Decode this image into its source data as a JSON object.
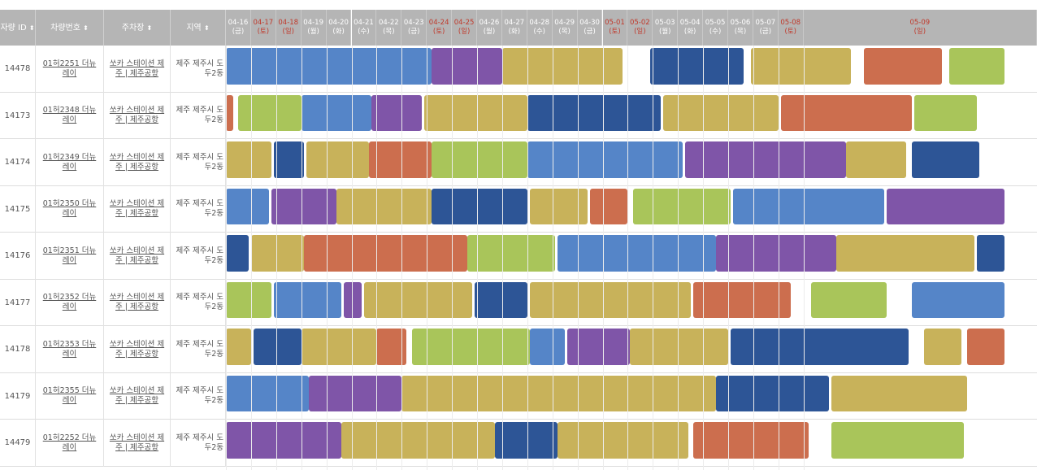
{
  "columns": {
    "car_id": "자량 ID",
    "car_no": "차량번호",
    "parking": "주차장",
    "region": "지역",
    "sort_mark": "⬍"
  },
  "dates": [
    {
      "d": "04-16",
      "w": "(금)",
      "weekend": false
    },
    {
      "d": "04-17",
      "w": "(토)",
      "weekend": true
    },
    {
      "d": "04-18",
      "w": "(일)",
      "weekend": true
    },
    {
      "d": "04-19",
      "w": "(월)",
      "weekend": false
    },
    {
      "d": "04-20",
      "w": "(화)",
      "weekend": false
    },
    {
      "d": "04-21",
      "w": "(수)",
      "weekend": false
    },
    {
      "d": "04-22",
      "w": "(목)",
      "weekend": false
    },
    {
      "d": "04-23",
      "w": "(금)",
      "weekend": false
    },
    {
      "d": "04-24",
      "w": "(토)",
      "weekend": true
    },
    {
      "d": "04-25",
      "w": "(일)",
      "weekend": true
    },
    {
      "d": "04-26",
      "w": "(월)",
      "weekend": false
    },
    {
      "d": "04-27",
      "w": "(화)",
      "weekend": false
    },
    {
      "d": "04-28",
      "w": "(수)",
      "weekend": false
    },
    {
      "d": "04-29",
      "w": "(목)",
      "weekend": false
    },
    {
      "d": "04-30",
      "w": "(금)",
      "weekend": false
    },
    {
      "d": "05-01",
      "w": "(토)",
      "weekend": true
    },
    {
      "d": "05-02",
      "w": "(일)",
      "weekend": true
    },
    {
      "d": "05-03",
      "w": "(월)",
      "weekend": false
    },
    {
      "d": "05-04",
      "w": "(화)",
      "weekend": false
    },
    {
      "d": "05-05",
      "w": "(수)",
      "weekend": false
    },
    {
      "d": "05-06",
      "w": "(목)",
      "weekend": false
    },
    {
      "d": "05-07",
      "w": "(금)",
      "weekend": false
    },
    {
      "d": "05-08",
      "w": "(토)",
      "weekend": true
    },
    {
      "d": "05-09",
      "w": "(일)",
      "weekend": true
    }
  ],
  "colors": {
    "blue": "#5585c8",
    "purple": "#7f55a8",
    "gold": "#c8b25a",
    "navy": "#2d5596",
    "orange": "#cc6e4e",
    "green": "#a9c55a"
  },
  "rows": [
    {
      "id": "14478",
      "car": "01허2251 더뉴레이",
      "parking": "쏘카 스테이션 제주 | 제주공항",
      "region": "제주 제주시 도두2동",
      "bars": [
        [
          "blue",
          0,
          8.2
        ],
        [
          "purple",
          8.2,
          11.0
        ],
        [
          "gold",
          11.0,
          15.8
        ],
        [
          "navy",
          16.9,
          20.6
        ],
        [
          "gold",
          20.9,
          24.9
        ],
        [
          "orange",
          25.4,
          28.5
        ],
        [
          "green",
          28.8,
          31
        ]
      ]
    },
    {
      "id": "14173",
      "car": "01허2348 더뉴레이",
      "parking": "쏘카 스테이션 제주 | 제주공항",
      "region": "제주 제주시 도두2동",
      "bars": [
        [
          "orange",
          0,
          0.3
        ],
        [
          "green",
          0.5,
          3.0
        ],
        [
          "blue",
          3.0,
          5.8
        ],
        [
          "purple",
          5.8,
          7.8
        ],
        [
          "gold",
          7.9,
          12.0
        ],
        [
          "navy",
          12.0,
          17.3
        ],
        [
          "gold",
          17.4,
          22.0
        ],
        [
          "orange",
          22.1,
          27.3
        ],
        [
          "green",
          27.4,
          29.9
        ]
      ]
    },
    {
      "id": "14174",
      "car": "01허2349 더뉴레이",
      "parking": "쏘카 스테이션 제주 | 제주공항",
      "region": "제주 제주시 도두2동",
      "bars": [
        [
          "gold",
          0,
          1.8
        ],
        [
          "navy",
          1.9,
          3.1
        ],
        [
          "gold",
          3.2,
          5.7
        ],
        [
          "orange",
          5.7,
          8.2
        ],
        [
          "green",
          8.2,
          12.0
        ],
        [
          "blue",
          12.0,
          18.2
        ],
        [
          "purple",
          18.3,
          24.7
        ],
        [
          "gold",
          24.7,
          27.1
        ],
        [
          "navy",
          27.3,
          30.0
        ]
      ]
    },
    {
      "id": "14175",
      "car": "01허2350 더뉴레이",
      "parking": "쏘카 스테이션 제주 | 제주공항",
      "region": "제주 제주시 도두2동",
      "bars": [
        [
          "blue",
          0,
          1.7
        ],
        [
          "purple",
          1.8,
          4.4
        ],
        [
          "gold",
          4.4,
          8.2
        ],
        [
          "navy",
          8.2,
          12.0
        ],
        [
          "gold",
          12.1,
          14.4
        ],
        [
          "orange",
          14.5,
          16.0
        ],
        [
          "green",
          16.2,
          20.1
        ],
        [
          "blue",
          20.2,
          26.2
        ],
        [
          "purple",
          26.3,
          31
        ]
      ]
    },
    {
      "id": "14176",
      "car": "01허2351 더뉴레이",
      "parking": "쏘카 스테이션 제주 | 제주공항",
      "region": "제주 제주시 도두2동",
      "bars": [
        [
          "navy",
          0,
          0.9
        ],
        [
          "gold",
          1.0,
          3.1
        ],
        [
          "orange",
          3.1,
          9.6
        ],
        [
          "green",
          9.6,
          13.1
        ],
        [
          "blue",
          13.2,
          19.5
        ],
        [
          "purple",
          19.5,
          24.3
        ],
        [
          "gold",
          24.3,
          29.8
        ],
        [
          "navy",
          29.9,
          31
        ]
      ]
    },
    {
      "id": "14177",
      "car": "01허2352 더뉴레이",
      "parking": "쏘카 스테이션 제주 | 제주공항",
      "region": "제주 제주시 도두2동",
      "bars": [
        [
          "green",
          0,
          1.8
        ],
        [
          "blue",
          1.9,
          4.6
        ],
        [
          "purple",
          4.7,
          5.4
        ],
        [
          "gold",
          5.5,
          9.8
        ],
        [
          "navy",
          9.9,
          12.0
        ],
        [
          "gold",
          12.1,
          18.5
        ],
        [
          "orange",
          18.6,
          22.5
        ],
        [
          "green",
          23.3,
          26.3
        ],
        [
          "blue",
          27.3,
          31
        ]
      ]
    },
    {
      "id": "14178",
      "car": "01허2353 더뉴레이",
      "parking": "쏘카 스테이션 제주 | 제주공항",
      "region": "제주 제주시 도두2동",
      "bars": [
        [
          "gold",
          0,
          1.0
        ],
        [
          "navy",
          1.1,
          3.0
        ],
        [
          "gold",
          3.0,
          6.0
        ],
        [
          "orange",
          6.0,
          7.2
        ],
        [
          "green",
          7.4,
          12.1
        ],
        [
          "blue",
          12.1,
          13.5
        ],
        [
          "purple",
          13.6,
          16.1
        ],
        [
          "gold",
          16.1,
          20.0
        ],
        [
          "navy",
          20.1,
          27.2
        ],
        [
          "gold",
          27.8,
          29.3
        ],
        [
          "orange",
          29.5,
          31
        ]
      ]
    },
    {
      "id": "14179",
      "car": "01허2355 더뉴레이",
      "parking": "쏘카 스테이션 제주 | 제주공항",
      "region": "제주 제주시 도두2동",
      "bars": [
        [
          "blue",
          0,
          3.3
        ],
        [
          "purple",
          3.3,
          7.0
        ],
        [
          "gold",
          7.0,
          19.5
        ],
        [
          "navy",
          19.5,
          24.0
        ],
        [
          "gold",
          24.1,
          29.5
        ]
      ]
    },
    {
      "id": "14479",
      "car": "01허2252 더뉴레이",
      "parking": "쏘카 스테이션 제주 | 제주공항",
      "region": "제주 제주시 도두2동",
      "bars": [
        [
          "purple",
          0,
          4.6
        ],
        [
          "gold",
          4.6,
          10.7
        ],
        [
          "navy",
          10.7,
          13.2
        ],
        [
          "gold",
          13.2,
          18.4
        ],
        [
          "orange",
          18.6,
          23.2
        ],
        [
          "green",
          24.1,
          29.4
        ]
      ]
    }
  ]
}
